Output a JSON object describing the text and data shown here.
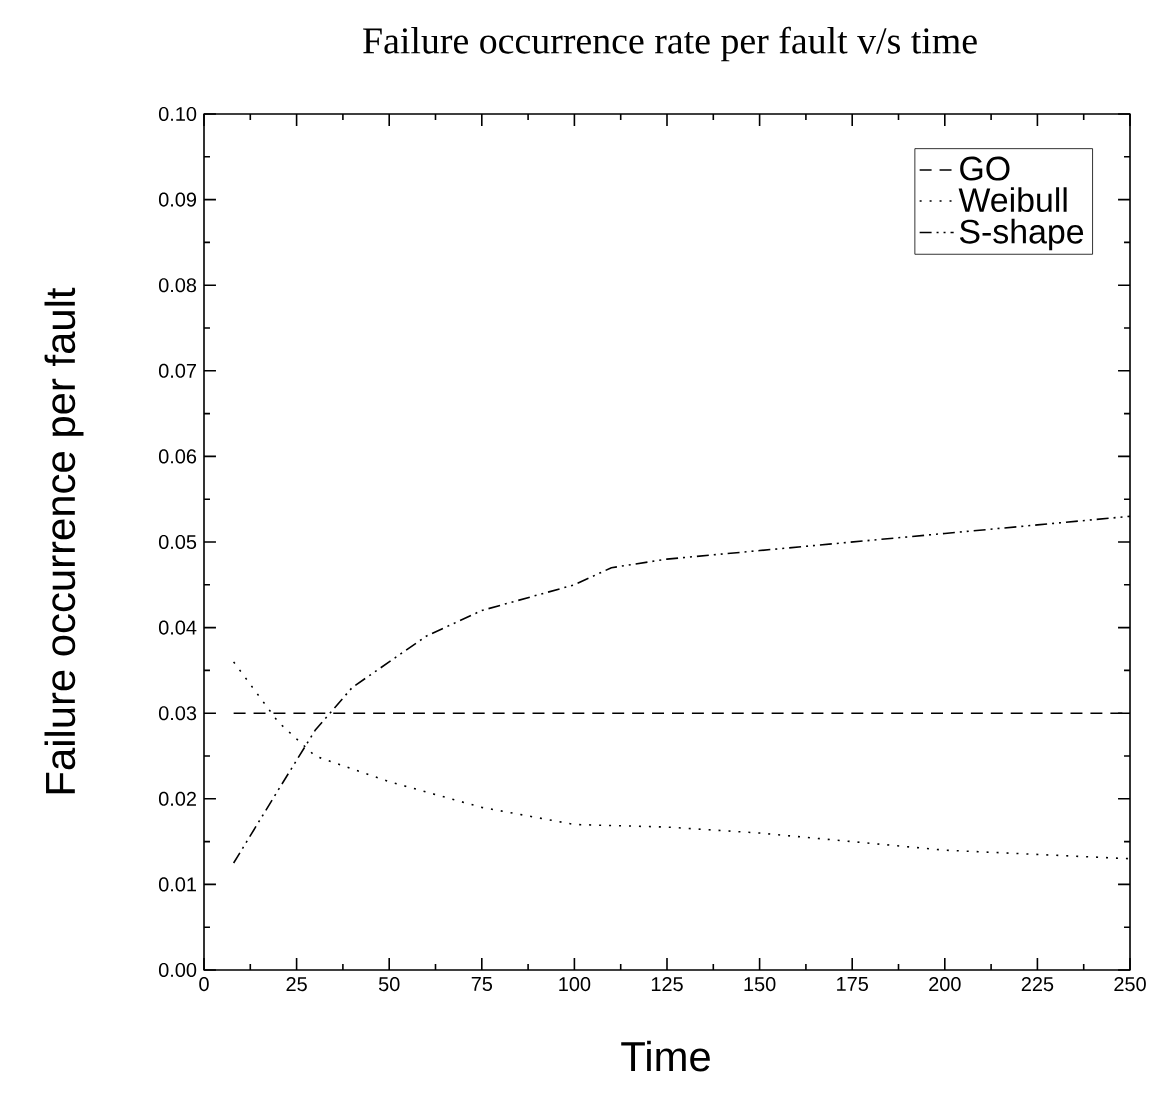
{
  "chart_data": {
    "type": "line",
    "title": "Failure occurrence rate per fault v/s time",
    "xlabel": "Time",
    "ylabel": "Failure occurrence per fault",
    "xlim": [
      0,
      250
    ],
    "xticks": [
      0,
      25,
      50,
      75,
      100,
      125,
      150,
      175,
      200,
      225,
      250
    ],
    "ylim": [
      0,
      0.1
    ],
    "yticks": [
      {
        "value": 0,
        "label": "0.00"
      },
      {
        "value": 0.01,
        "label": "0.01"
      },
      {
        "value": 0.02,
        "label": "0.02"
      },
      {
        "value": 0.03,
        "label": "0.03"
      },
      {
        "value": 0.04,
        "label": "0.04"
      },
      {
        "value": 0.05,
        "label": "0.05"
      },
      {
        "value": 0.06,
        "label": "0.06"
      },
      {
        "value": 0.07,
        "label": "0.07"
      },
      {
        "value": 0.08,
        "label": "0.08"
      },
      {
        "value": 0.09,
        "label": "0.09"
      },
      {
        "value": 0.1,
        "label": "0.10"
      }
    ],
    "legend": "top right",
    "grid": false,
    "marker": "none",
    "series": [
      {
        "name": "GO",
        "color": "#000000",
        "line_style": "dashed",
        "x": [
          8,
          250
        ],
        "values": [
          0.03,
          0.03
        ]
      },
      {
        "name": "Weibull",
        "color": "#000000",
        "line_style": "dotted",
        "x": [
          8,
          20,
          30,
          50,
          75,
          100,
          125,
          150,
          175,
          200,
          225,
          250
        ],
        "values": [
          0.036,
          0.029,
          0.025,
          0.022,
          0.019,
          0.017,
          0.0167,
          0.016,
          0.015,
          0.014,
          0.0135,
          0.013
        ]
      },
      {
        "name": "S-shape",
        "color": "#000000",
        "line_style": "dashdotdotted",
        "x": [
          8,
          20,
          30,
          40,
          50,
          60,
          75,
          100,
          110,
          125,
          150,
          175,
          200,
          225,
          250
        ],
        "values": [
          0.0125,
          0.021,
          0.028,
          0.033,
          0.036,
          0.039,
          0.042,
          0.045,
          0.047,
          0.048,
          0.049,
          0.05,
          0.051,
          0.052,
          0.053
        ]
      }
    ]
  }
}
